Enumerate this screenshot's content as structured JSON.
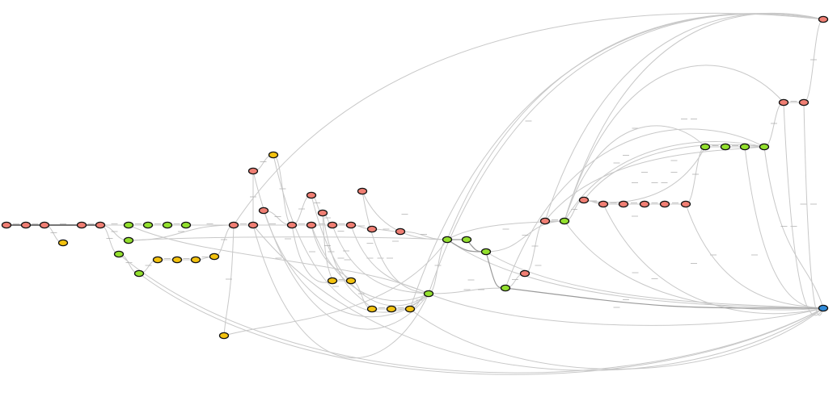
{
  "diagram": {
    "kind": "directed-graph",
    "colors": {
      "red": "#f07f74",
      "green": "#93e02e",
      "yellow": "#f3c20f",
      "blue": "#2f8ad8",
      "edge": "#c8c8c8",
      "edge_strong": "#4a4a4a",
      "outline": "#111111"
    },
    "node_color_counts": {
      "red": 36,
      "green": 17,
      "yellow": 15,
      "blue": 1
    }
  }
}
